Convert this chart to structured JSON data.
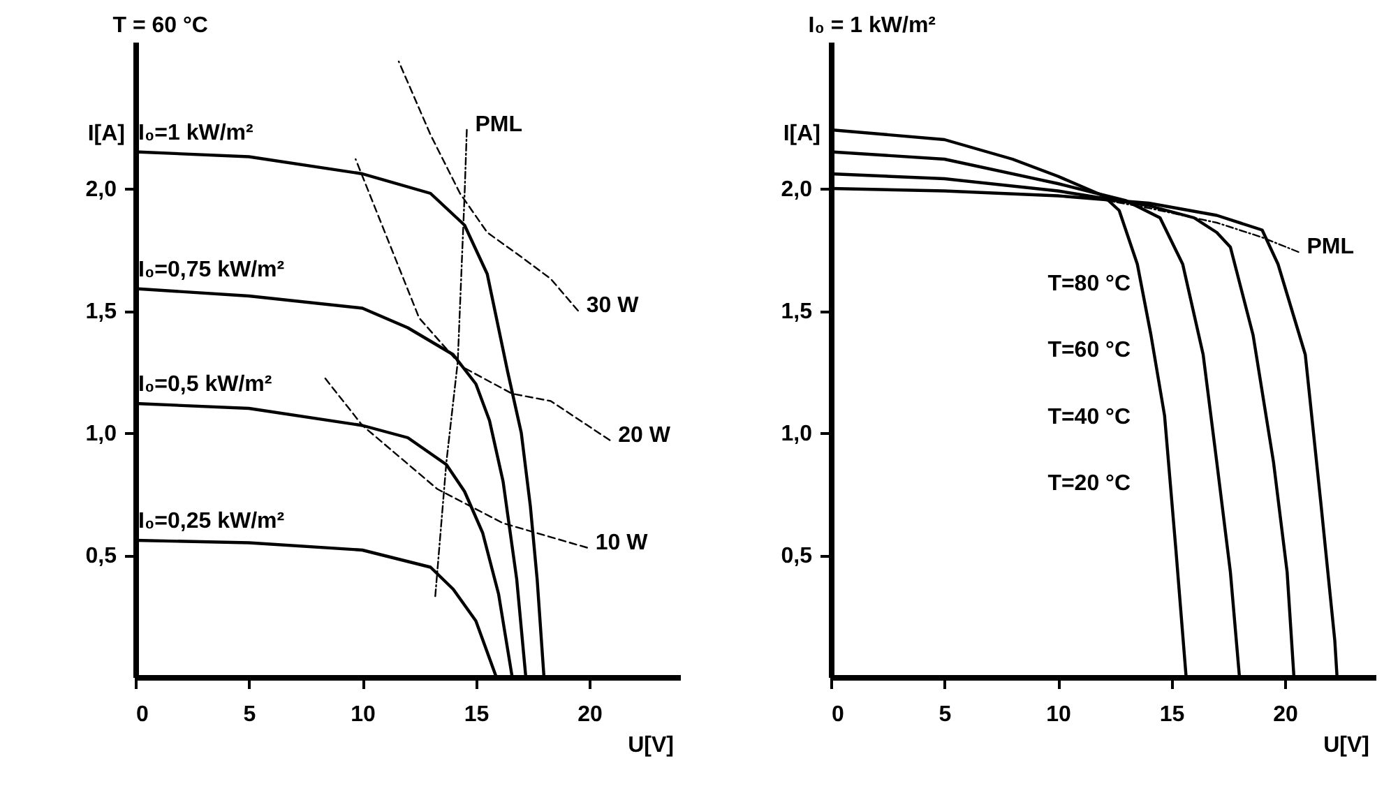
{
  "chart_data": [
    {
      "type": "line",
      "title": "T = 60 °C",
      "xlabel": "U[V]",
      "ylabel": "I[A]",
      "xlim": [
        0,
        24
      ],
      "ylim": [
        0,
        2.6
      ],
      "xticks": [
        0,
        5,
        10,
        15,
        20
      ],
      "yticks": [
        {
          "value": 0.5,
          "label": "0,5"
        },
        {
          "value": 1.0,
          "label": "1,0"
        },
        {
          "value": 1.5,
          "label": "1,5"
        },
        {
          "value": 2.0,
          "label": "2,0"
        }
      ],
      "series": [
        {
          "name": "I₀=1 kW/m²",
          "color": "#000000",
          "line_style": "solid",
          "x": [
            0,
            5,
            10,
            13,
            14.5,
            15.5,
            16.4,
            17,
            17.4,
            17.7,
            18
          ],
          "values": [
            2.15,
            2.13,
            2.06,
            1.98,
            1.85,
            1.65,
            1.25,
            1.0,
            0.7,
            0.4,
            0
          ]
        },
        {
          "name": "I₀=0,75 kW/m²",
          "color": "#000000",
          "line_style": "solid",
          "x": [
            0,
            5,
            10,
            12,
            14,
            15,
            15.6,
            16.2,
            16.8,
            17.2
          ],
          "values": [
            1.59,
            1.56,
            1.51,
            1.43,
            1.32,
            1.2,
            1.05,
            0.8,
            0.4,
            0
          ]
        },
        {
          "name": "I₀=0,5 kW/m²",
          "color": "#000000",
          "line_style": "solid",
          "x": [
            0,
            5,
            10,
            12,
            13.7,
            14.5,
            15.3,
            16,
            16.6
          ],
          "values": [
            1.12,
            1.1,
            1.03,
            0.98,
            0.87,
            0.76,
            0.59,
            0.34,
            0
          ]
        },
        {
          "name": "I₀=0,25 kW/m²",
          "color": "#000000",
          "line_style": "solid",
          "x": [
            0,
            5,
            10,
            13,
            14,
            15,
            15.9
          ],
          "values": [
            0.56,
            0.55,
            0.52,
            0.45,
            0.36,
            0.23,
            0
          ]
        },
        {
          "name": "30 W",
          "color": "#000000",
          "line_style": "dashed",
          "x": [
            19.5,
            18.3,
            17,
            15.5,
            14.3,
            13,
            11.6
          ],
          "values": [
            1.5,
            1.63,
            1.72,
            1.82,
            1.98,
            2.22,
            2.52
          ]
        },
        {
          "name": "20 W",
          "color": "#000000",
          "line_style": "dashed",
          "x": [
            20.9,
            18.3,
            16.6,
            14.4,
            12.5,
            9.7
          ],
          "values": [
            0.97,
            1.13,
            1.16,
            1.27,
            1.47,
            2.12
          ]
        },
        {
          "name": "10 W",
          "color": "#000000",
          "line_style": "dashed",
          "x": [
            19.9,
            16.2,
            13.3,
            10,
            8.3
          ],
          "values": [
            0.53,
            0.63,
            0.77,
            1.03,
            1.23
          ]
        },
        {
          "name": "PML",
          "color": "#000000",
          "line_style": "dotted",
          "x": [
            14.6,
            14.5,
            14.2,
            13.7,
            13.2
          ],
          "values": [
            2.24,
            1.97,
            1.29,
            0.88,
            0.32
          ]
        }
      ]
    },
    {
      "type": "line",
      "title": "I₀ = 1 kW/m²",
      "xlabel": "U[V]",
      "ylabel": "I[A]",
      "xlim": [
        0,
        24
      ],
      "ylim": [
        0,
        2.6
      ],
      "xticks": [
        0,
        5,
        10,
        15,
        20
      ],
      "yticks": [
        {
          "value": 0.5,
          "label": "0,5"
        },
        {
          "value": 1.0,
          "label": "1,0"
        },
        {
          "value": 1.5,
          "label": "1,5"
        },
        {
          "value": 2.0,
          "label": "2,0"
        }
      ],
      "series": [
        {
          "color": "#000000",
          "line_style": "solid",
          "x": [
            0,
            5,
            8,
            10,
            12,
            12.7,
            13.5,
            14.1,
            14.7,
            15.2,
            15.65
          ],
          "values": [
            2.24,
            2.2,
            2.12,
            2.05,
            1.97,
            1.91,
            1.69,
            1.4,
            1.07,
            0.52,
            0
          ]
        },
        {
          "color": "#000000",
          "line_style": "solid",
          "x": [
            0,
            5,
            10,
            13,
            14.5,
            15.5,
            16.4,
            17,
            17.6,
            18
          ],
          "values": [
            2.15,
            2.12,
            2.02,
            1.95,
            1.88,
            1.69,
            1.32,
            0.88,
            0.43,
            0
          ]
        },
        {
          "color": "#000000",
          "line_style": "solid",
          "x": [
            0,
            5,
            10,
            14,
            16,
            17,
            17.6,
            18.6,
            19.5,
            20.1,
            20.4
          ],
          "values": [
            2.06,
            2.04,
            1.99,
            1.93,
            1.88,
            1.82,
            1.76,
            1.4,
            0.88,
            0.43,
            0
          ]
        },
        {
          "color": "#000000",
          "line_style": "solid",
          "x": [
            0,
            5,
            10,
            14,
            17,
            19,
            19.7,
            20.9,
            21.6,
            22.2,
            22.3
          ],
          "values": [
            2.0,
            1.99,
            1.97,
            1.94,
            1.89,
            1.83,
            1.69,
            1.32,
            0.7,
            0.15,
            0
          ]
        },
        {
          "name": "PML",
          "color": "#000000",
          "line_style": "dotted",
          "x": [
            20.6,
            19,
            17,
            14,
            11
          ],
          "values": [
            1.74,
            1.8,
            1.86,
            1.92,
            1.97
          ]
        }
      ],
      "annotations": [
        "T=80 °C",
        "T=60 °C",
        "T=40 °C",
        "T=20 °C"
      ]
    }
  ]
}
